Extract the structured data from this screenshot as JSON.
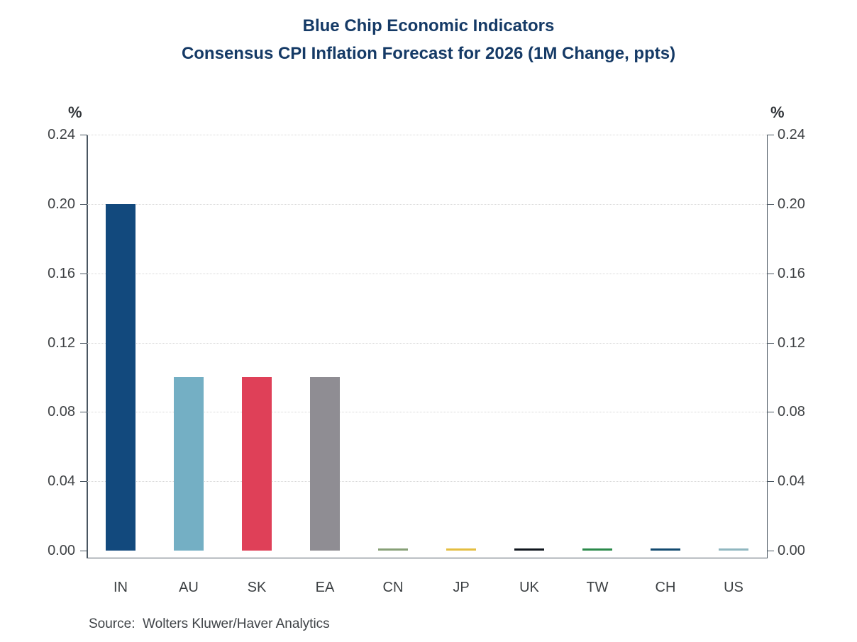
{
  "title": {
    "line1": "Blue Chip Economic Indicators",
    "line2": "Consensus CPI Inflation Forecast for 2026 (1M Change, ppts)",
    "color": "#153A66"
  },
  "axes": {
    "unit_left": "%",
    "unit_right": "%",
    "y_ticks": [
      "0.00",
      "0.04",
      "0.08",
      "0.12",
      "0.16",
      "0.20",
      "0.24"
    ],
    "y_min": 0.0,
    "y_max": 0.24,
    "grid": "horizontal dotted",
    "axis_color": "#4a5661",
    "gridline_color": "#d8d8d8"
  },
  "source": {
    "text": "Source:  Wolters Kluwer/Haver Analytics"
  },
  "chart_data": {
    "type": "bar",
    "title": "Blue Chip Economic Indicators — Consensus CPI Inflation Forecast for 2026 (1M Change, ppts)",
    "categories": [
      "IN",
      "AU",
      "SK",
      "EA",
      "CN",
      "JP",
      "UK",
      "TW",
      "CH",
      "US"
    ],
    "values": [
      0.2,
      0.1,
      0.1,
      0.1,
      0.0,
      0.0,
      0.0,
      0.0,
      0.0,
      0.0
    ],
    "bar_colors": [
      "#12497D",
      "#74AFC4",
      "#DF4058",
      "#8F8D93",
      "#87A077",
      "#E4BE41",
      "#10161E",
      "#2B8A4B",
      "#134A70",
      "#90B7C0"
    ],
    "xlabel": "",
    "ylabel": "%",
    "ylim": [
      0,
      0.24
    ],
    "legend": "none",
    "grid": "on",
    "source": "Wolters Kluwer/Haver Analytics"
  }
}
